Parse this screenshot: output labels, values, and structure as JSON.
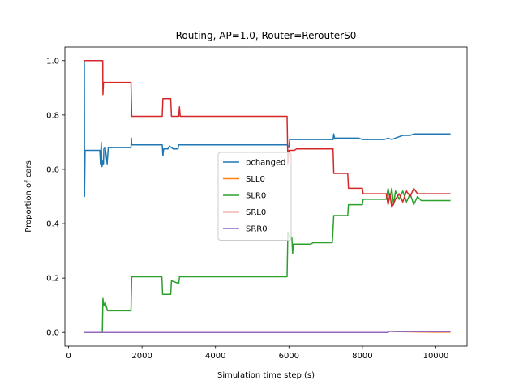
{
  "chart_data": {
    "type": "line",
    "title": "Routing, AP=1.0, Router=RerouterS0",
    "xlabel": "Simulation time step (s)",
    "ylabel": "Proportion of cars",
    "xlim": [
      -100,
      10850
    ],
    "ylim": [
      -0.05,
      1.05
    ],
    "xticks": [
      0,
      2000,
      4000,
      6000,
      8000,
      10000
    ],
    "yticks": [
      0.0,
      0.2,
      0.4,
      0.6,
      0.8,
      1.0
    ],
    "xtick_labels": [
      "0",
      "2000",
      "4000",
      "6000",
      "8000",
      "10000"
    ],
    "ytick_labels": [
      "0.0",
      "0.2",
      "0.4",
      "0.6",
      "0.8",
      "1.0"
    ],
    "grid": false,
    "legend_position": "center",
    "series": [
      {
        "name": "pchanged",
        "color": "#1f77b4",
        "points": [
          [
            430,
            1.0
          ],
          [
            435,
            0.5
          ],
          [
            450,
            0.67
          ],
          [
            850,
            0.67
          ],
          [
            870,
            0.62
          ],
          [
            890,
            0.7
          ],
          [
            910,
            0.61
          ],
          [
            930,
            0.63
          ],
          [
            950,
            0.62
          ],
          [
            960,
            0.675
          ],
          [
            1000,
            0.68
          ],
          [
            1050,
            0.62
          ],
          [
            1080,
            0.68
          ],
          [
            1700,
            0.68
          ],
          [
            1710,
            0.715
          ],
          [
            1720,
            0.69
          ],
          [
            2550,
            0.69
          ],
          [
            2570,
            0.65
          ],
          [
            2590,
            0.675
          ],
          [
            2700,
            0.675
          ],
          [
            2750,
            0.685
          ],
          [
            2850,
            0.675
          ],
          [
            2980,
            0.675
          ],
          [
            3000,
            0.69
          ],
          [
            5950,
            0.69
          ],
          [
            6000,
            0.68
          ],
          [
            6020,
            0.71
          ],
          [
            7200,
            0.71
          ],
          [
            7220,
            0.73
          ],
          [
            7240,
            0.715
          ],
          [
            7600,
            0.715
          ],
          [
            7900,
            0.715
          ],
          [
            8000,
            0.71
          ],
          [
            8600,
            0.71
          ],
          [
            8700,
            0.715
          ],
          [
            8800,
            0.71
          ],
          [
            9000,
            0.72
          ],
          [
            9100,
            0.725
          ],
          [
            9300,
            0.725
          ],
          [
            9400,
            0.73
          ],
          [
            9600,
            0.73
          ],
          [
            10400,
            0.73
          ]
        ]
      },
      {
        "name": "SLL0",
        "color": "#ff7f0e",
        "points": [
          [
            430,
            0.0
          ],
          [
            8700,
            0.0
          ],
          [
            8720,
            0.005
          ],
          [
            9000,
            0.003
          ],
          [
            9500,
            0.002
          ],
          [
            10000,
            0.001
          ],
          [
            10400,
            0.001
          ]
        ]
      },
      {
        "name": "SLR0",
        "color": "#2ca02c",
        "points": [
          [
            430,
            0.0
          ],
          [
            920,
            0.0
          ],
          [
            935,
            0.125
          ],
          [
            960,
            0.1
          ],
          [
            1000,
            0.11
          ],
          [
            1060,
            0.08
          ],
          [
            1700,
            0.08
          ],
          [
            1720,
            0.205
          ],
          [
            2540,
            0.205
          ],
          [
            2560,
            0.14
          ],
          [
            2780,
            0.14
          ],
          [
            2800,
            0.19
          ],
          [
            3000,
            0.18
          ],
          [
            3020,
            0.205
          ],
          [
            5950,
            0.205
          ],
          [
            5970,
            0.37
          ],
          [
            6000,
            0.35
          ],
          [
            6080,
            0.35
          ],
          [
            6100,
            0.29
          ],
          [
            6120,
            0.325
          ],
          [
            6600,
            0.325
          ],
          [
            6650,
            0.33
          ],
          [
            7180,
            0.33
          ],
          [
            7220,
            0.43
          ],
          [
            7600,
            0.43
          ],
          [
            7620,
            0.47
          ],
          [
            8000,
            0.47
          ],
          [
            8020,
            0.49
          ],
          [
            8650,
            0.49
          ],
          [
            8700,
            0.53
          ],
          [
            8750,
            0.49
          ],
          [
            8800,
            0.53
          ],
          [
            8850,
            0.47
          ],
          [
            8900,
            0.52
          ],
          [
            9000,
            0.49
          ],
          [
            9100,
            0.52
          ],
          [
            9200,
            0.48
          ],
          [
            9300,
            0.51
          ],
          [
            9400,
            0.47
          ],
          [
            9500,
            0.5
          ],
          [
            9600,
            0.485
          ],
          [
            10400,
            0.485
          ]
        ]
      },
      {
        "name": "SRL0",
        "color": "#d62728",
        "points": [
          [
            430,
            1.0
          ],
          [
            930,
            1.0
          ],
          [
            935,
            0.875
          ],
          [
            950,
            0.92
          ],
          [
            1700,
            0.92
          ],
          [
            1720,
            0.795
          ],
          [
            2550,
            0.795
          ],
          [
            2570,
            0.86
          ],
          [
            2780,
            0.86
          ],
          [
            2800,
            0.795
          ],
          [
            3000,
            0.795
          ],
          [
            3020,
            0.83
          ],
          [
            3040,
            0.795
          ],
          [
            5950,
            0.795
          ],
          [
            5970,
            0.62
          ],
          [
            6000,
            0.67
          ],
          [
            6150,
            0.67
          ],
          [
            6200,
            0.675
          ],
          [
            7200,
            0.675
          ],
          [
            7220,
            0.585
          ],
          [
            7600,
            0.585
          ],
          [
            7620,
            0.53
          ],
          [
            8000,
            0.53
          ],
          [
            8020,
            0.51
          ],
          [
            8650,
            0.51
          ],
          [
            8700,
            0.47
          ],
          [
            8750,
            0.51
          ],
          [
            8800,
            0.46
          ],
          [
            8900,
            0.49
          ],
          [
            9000,
            0.51
          ],
          [
            9100,
            0.48
          ],
          [
            9200,
            0.52
          ],
          [
            9300,
            0.5
          ],
          [
            9400,
            0.53
          ],
          [
            9500,
            0.51
          ],
          [
            10400,
            0.51
          ]
        ]
      },
      {
        "name": "SRR0",
        "color": "#9467bd",
        "points": [
          [
            430,
            0.0
          ],
          [
            8700,
            0.0
          ],
          [
            8720,
            0.004
          ],
          [
            9000,
            0.003
          ],
          [
            9500,
            0.003
          ],
          [
            10400,
            0.003
          ]
        ]
      }
    ]
  }
}
